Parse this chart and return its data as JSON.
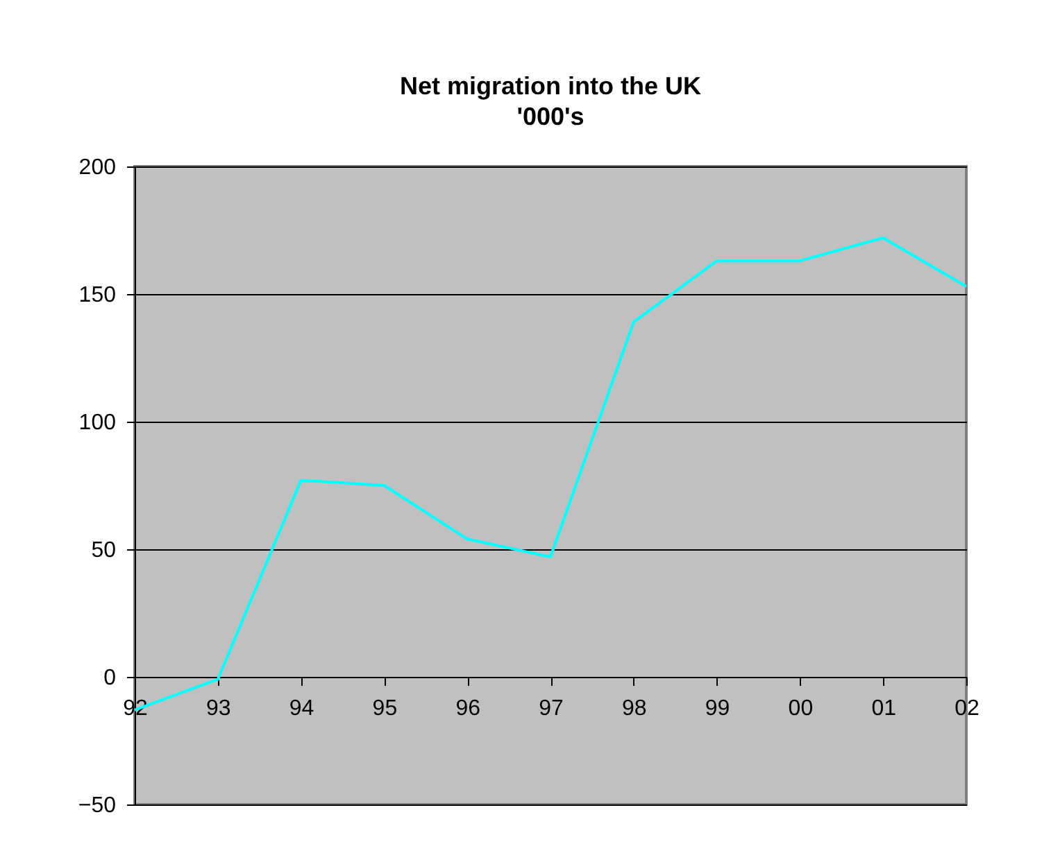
{
  "chart_data": {
    "type": "line",
    "title": "Net migration into the UK",
    "subtitle": "'000's",
    "categories": [
      "92",
      "93",
      "94",
      "95",
      "96",
      "97",
      "98",
      "99",
      "00",
      "01",
      "02"
    ],
    "series": [
      {
        "color": "#00ffff",
        "values": [
          -13,
          -1,
          77,
          75,
          54,
          47,
          139,
          163,
          163,
          172,
          153
        ]
      }
    ],
    "ylim": [
      -50,
      200
    ],
    "yticks": [
      -50,
      0,
      50,
      100,
      150,
      200
    ],
    "grid": "y",
    "marker": "none",
    "line_style": "solid"
  }
}
